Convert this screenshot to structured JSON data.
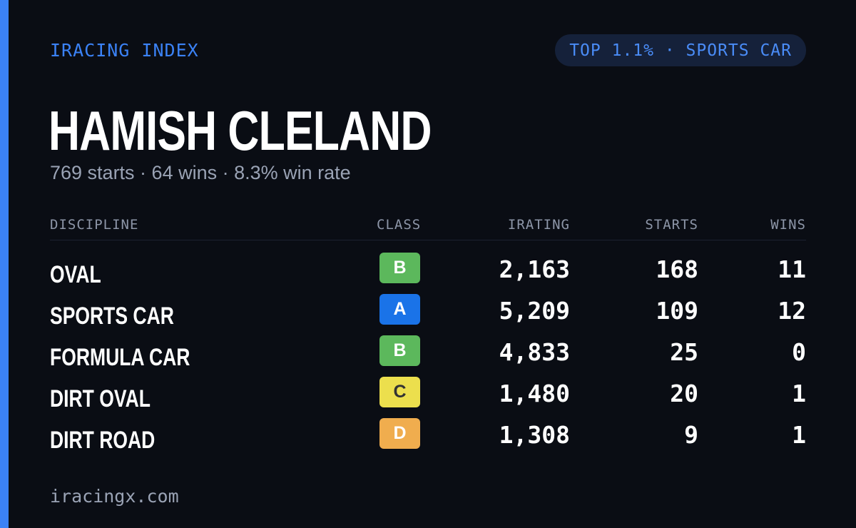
{
  "header": {
    "brand": "IRACING INDEX",
    "pill": "TOP 1.1% · SPORTS CAR"
  },
  "driver": {
    "name": "HAMISH CLELAND",
    "summary": "769 starts · 64 wins · 8.3% win rate"
  },
  "table": {
    "columns": {
      "discipline": "DISCIPLINE",
      "class": "CLASS",
      "irating": "IRATING",
      "starts": "STARTS",
      "wins": "WINS"
    },
    "rows": [
      {
        "discipline": "OVAL",
        "class": "B",
        "class_color": "#5cb85c",
        "class_text_color": "#ffffff",
        "irating": "2,163",
        "starts": "168",
        "wins": "11"
      },
      {
        "discipline": "SPORTS CAR",
        "class": "A",
        "class_color": "#1a73e8",
        "class_text_color": "#ffffff",
        "irating": "5,209",
        "starts": "109",
        "wins": "12"
      },
      {
        "discipline": "FORMULA CAR",
        "class": "B",
        "class_color": "#5cb85c",
        "class_text_color": "#ffffff",
        "irating": "4,833",
        "starts": "25",
        "wins": "0"
      },
      {
        "discipline": "DIRT OVAL",
        "class": "C",
        "class_color": "#ecdf4d",
        "class_text_color": "#333333",
        "irating": "1,480",
        "starts": "20",
        "wins": "1"
      },
      {
        "discipline": "DIRT ROAD",
        "class": "D",
        "class_color": "#f0ad4e",
        "class_text_color": "#ffffff",
        "irating": "1,308",
        "starts": "9",
        "wins": "1"
      }
    ]
  },
  "footer": {
    "site": "iracingx.com"
  },
  "colors": {
    "accent": "#3b82f6",
    "background": "#0a0d14"
  }
}
